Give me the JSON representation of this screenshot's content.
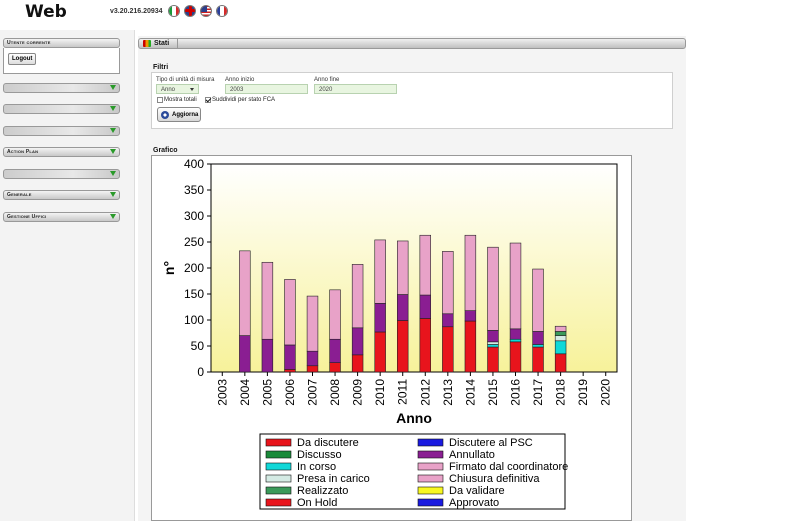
{
  "header": {
    "app_title": "Web",
    "version": "v3.20.216.20934",
    "flags": [
      "it-flag",
      "uk-flag",
      "us-flag",
      "fr-flag"
    ]
  },
  "sidebar": {
    "user_panel_title": "Utente corrente",
    "logout_label": "Logout",
    "panels": [
      "",
      "",
      "",
      "Action Plan",
      "",
      "Generale",
      "Gestione Uffici"
    ]
  },
  "tab": {
    "label": "Stati"
  },
  "filters": {
    "title": "Filtri",
    "unit_label": "Tipo di unità di misura",
    "unit_value": "Anno",
    "start_label": "Anno inizio",
    "start_value": "2003",
    "end_label": "Anno fine",
    "end_value": "2020",
    "show_totals_label": "Mostra totali",
    "show_totals_checked": false,
    "split_label": "Suddividi per stato FCA",
    "split_checked": true,
    "refresh_label": "Aggiorna"
  },
  "chart_title_section": "Grafico",
  "chart_data": {
    "type": "bar",
    "stacked": true,
    "xlabel": "Anno",
    "ylabel": "n°",
    "ylim": [
      0,
      400
    ],
    "yticks": [
      0,
      50,
      100,
      150,
      200,
      250,
      300,
      350,
      400
    ],
    "categories": [
      "2003",
      "2004",
      "2005",
      "2006",
      "2007",
      "2008",
      "2009",
      "2010",
      "2011",
      "2012",
      "2013",
      "2014",
      "2015",
      "2016",
      "2017",
      "2018",
      "2019",
      "2020"
    ],
    "series": [
      {
        "name": "Da discutere",
        "color": "#e8141c",
        "values": [
          0,
          0,
          0,
          5,
          12,
          18,
          33,
          77,
          99,
          103,
          87,
          98,
          48,
          58,
          48,
          35,
          0,
          0
        ]
      },
      {
        "name": "Discusso",
        "color": "#1a8a3a",
        "values": [
          0,
          0,
          0,
          0,
          0,
          0,
          0,
          0,
          0,
          0,
          0,
          0,
          0,
          0,
          0,
          0,
          0,
          0
        ]
      },
      {
        "name": "In corso",
        "color": "#10d8d8",
        "values": [
          0,
          0,
          0,
          0,
          0,
          0,
          0,
          0,
          0,
          0,
          0,
          0,
          5,
          5,
          5,
          25,
          0,
          0
        ]
      },
      {
        "name": "Presa in carico",
        "color": "#d4ebe4",
        "values": [
          0,
          0,
          0,
          0,
          0,
          0,
          0,
          0,
          0,
          0,
          0,
          0,
          5,
          0,
          0,
          10,
          0,
          0
        ]
      },
      {
        "name": "Realizzato",
        "color": "#3a9a5a",
        "values": [
          0,
          0,
          0,
          0,
          0,
          0,
          0,
          0,
          0,
          0,
          0,
          0,
          0,
          0,
          0,
          8,
          0,
          0
        ]
      },
      {
        "name": "On Hold",
        "color": "#e8141c",
        "values": [
          0,
          0,
          0,
          0,
          0,
          0,
          0,
          0,
          0,
          0,
          0,
          0,
          0,
          0,
          0,
          0,
          0,
          0
        ]
      },
      {
        "name": "Discutere al PSC",
        "color": "#1a1ae0",
        "values": [
          0,
          0,
          0,
          0,
          0,
          0,
          0,
          0,
          0,
          0,
          0,
          0,
          0,
          0,
          0,
          0,
          0,
          0
        ]
      },
      {
        "name": "Annullato",
        "color": "#8a1e92",
        "values": [
          0,
          70,
          63,
          47,
          28,
          45,
          52,
          55,
          50,
          45,
          25,
          20,
          22,
          20,
          25,
          0,
          0,
          0
        ]
      },
      {
        "name": "Firmato dal coordinatore",
        "color": "#e8a2c8",
        "values": [
          0,
          163,
          148,
          126,
          106,
          95,
          122,
          122,
          103,
          115,
          120,
          145,
          160,
          165,
          120,
          10,
          0,
          0
        ]
      },
      {
        "name": "Chiusura definitiva",
        "color": "#e8a2c8",
        "values": [
          0,
          0,
          0,
          0,
          0,
          0,
          0,
          0,
          0,
          0,
          0,
          0,
          0,
          0,
          0,
          0,
          0,
          0
        ]
      },
      {
        "name": "Da validare",
        "color": "#f8f820",
        "values": [
          0,
          0,
          0,
          0,
          0,
          0,
          0,
          0,
          0,
          0,
          0,
          0,
          0,
          0,
          0,
          0,
          0,
          0
        ]
      },
      {
        "name": "Approvato",
        "color": "#1a1ae0",
        "values": [
          0,
          0,
          0,
          0,
          0,
          0,
          0,
          0,
          0,
          0,
          0,
          0,
          0,
          0,
          0,
          0,
          0,
          0
        ]
      }
    ],
    "legend": [
      "Da discutere",
      "Discutere al PSC",
      "Discusso",
      "Annullato",
      "In corso",
      "Firmato dal coordinatore",
      "Presa in carico",
      "Chiusura definitiva",
      "Realizzato",
      "Da validare",
      "On Hold",
      "Approvato"
    ]
  }
}
